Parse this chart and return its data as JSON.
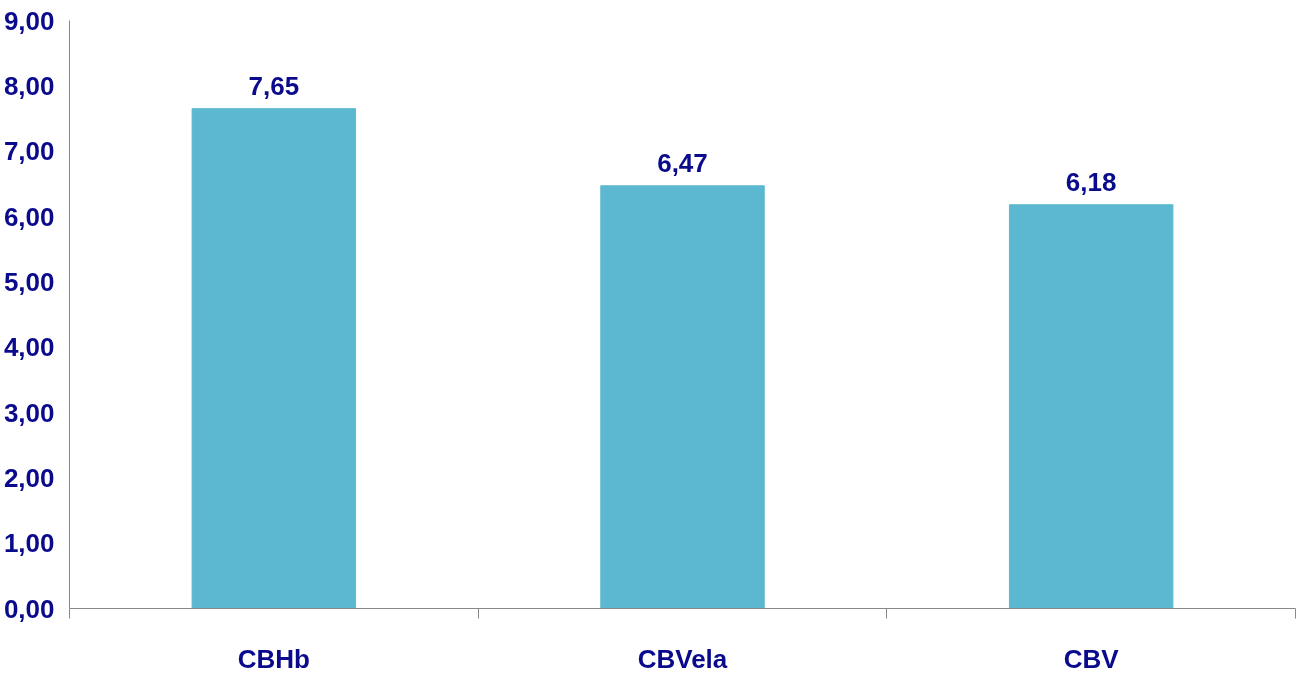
{
  "chart_data": {
    "type": "bar",
    "categories": [
      "CBHb",
      "CBVela",
      "CBV"
    ],
    "values": [
      7.65,
      6.47,
      6.18
    ],
    "value_labels": [
      "7,65",
      "6,47",
      "6,18"
    ],
    "color": "#5bb8d0",
    "ylim": [
      0,
      9
    ],
    "yticks": [
      {
        "value": 0,
        "label": "0,00"
      },
      {
        "value": 1,
        "label": "1,00"
      },
      {
        "value": 2,
        "label": "2,00"
      },
      {
        "value": 3,
        "label": "3,00"
      },
      {
        "value": 4,
        "label": "4,00"
      },
      {
        "value": 5,
        "label": "5,00"
      },
      {
        "value": 6,
        "label": "6,00"
      },
      {
        "value": 7,
        "label": "7,00"
      },
      {
        "value": 8,
        "label": "8,00"
      },
      {
        "value": 9,
        "label": "9,00"
      }
    ],
    "grid": false
  }
}
